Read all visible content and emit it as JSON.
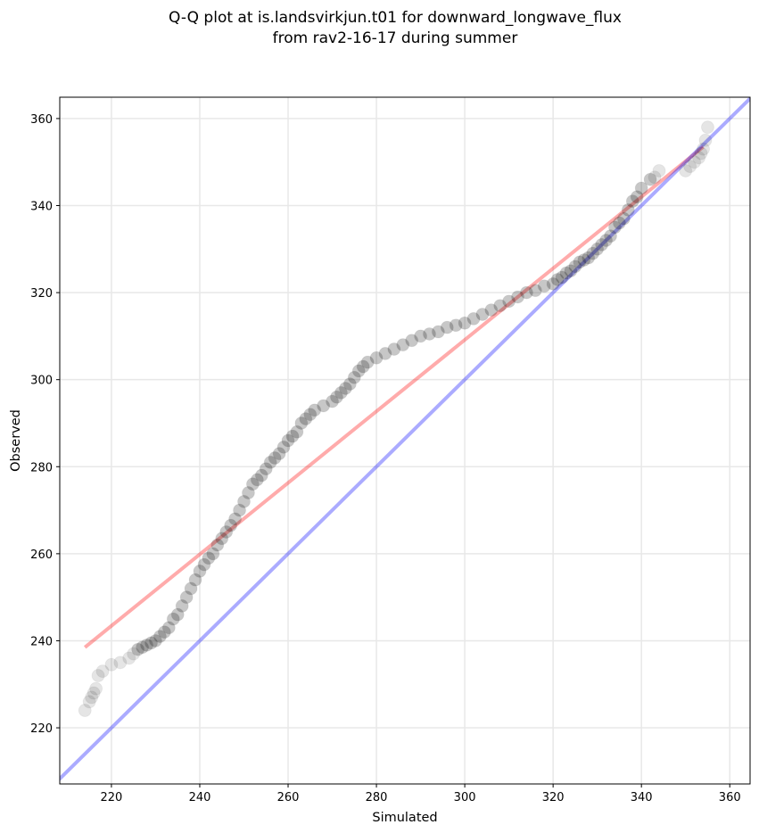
{
  "chart_data": {
    "type": "scatter",
    "title": [
      "Q-Q plot at is.landsvirkjun.t01 for downward_longwave_flux",
      "from rav2-16-17 during summer"
    ],
    "xlabel": "Simulated",
    "ylabel": "Observed",
    "xlim": [
      208.3,
      364.6
    ],
    "ylim": [
      207.1,
      364.9
    ],
    "xticks": [
      220,
      240,
      260,
      280,
      300,
      320,
      340,
      360
    ],
    "yticks": [
      220,
      240,
      260,
      280,
      300,
      320,
      340,
      360
    ],
    "grid": true,
    "quantiles": {
      "x": [
        214,
        215,
        215.5,
        216,
        216.5,
        217,
        218,
        220,
        222,
        224,
        225,
        226,
        227,
        228,
        229,
        230,
        231,
        232,
        233,
        234,
        235,
        236,
        237,
        238,
        239,
        240,
        241,
        242,
        243,
        244,
        245,
        246,
        247,
        248,
        249,
        250,
        251,
        252,
        253,
        254,
        255,
        256,
        257,
        258,
        259,
        260,
        261,
        262,
        263,
        264,
        265,
        266,
        268,
        270,
        271,
        272,
        273,
        274,
        275,
        276,
        277,
        278,
        280,
        282,
        284,
        286,
        288,
        290,
        292,
        294,
        296,
        298,
        300,
        302,
        304,
        306,
        308,
        310,
        312,
        314,
        316,
        318,
        320,
        321,
        322,
        323,
        324,
        325,
        326,
        327,
        328,
        329,
        330,
        331,
        332,
        333,
        334,
        335,
        336,
        337,
        338,
        339,
        340,
        342,
        343,
        344,
        350,
        351,
        352,
        353,
        353.5,
        354,
        354.5,
        355
      ],
      "y": [
        224,
        226,
        227,
        228,
        229,
        232,
        233,
        234.5,
        235,
        236,
        237,
        238,
        238.5,
        239,
        239.5,
        240,
        241,
        242,
        243,
        245,
        246,
        248,
        250,
        252,
        254,
        256,
        257.5,
        259,
        260,
        262,
        263.5,
        265,
        266.5,
        268,
        270,
        272,
        274,
        276,
        277,
        278,
        279.5,
        281,
        282,
        283,
        284.5,
        286,
        287,
        288,
        290,
        291,
        292,
        293,
        294,
        295,
        296,
        297,
        298,
        299,
        300.5,
        302,
        303,
        304,
        305,
        306,
        307,
        308,
        309,
        310,
        310.5,
        311,
        312,
        312.5,
        313,
        314,
        315,
        316,
        317,
        318,
        319,
        320,
        320.5,
        321.5,
        322,
        323,
        323.5,
        324.5,
        325,
        326,
        327,
        327.5,
        328,
        329,
        330,
        331,
        332,
        333,
        335,
        336,
        337,
        339,
        341,
        342,
        344,
        346,
        346.5,
        348,
        348,
        349,
        350,
        351,
        352,
        353,
        355,
        358
      ]
    },
    "series": [
      {
        "name": "fit",
        "color": "#ff0000",
        "x": [
          214,
          354
        ],
        "y": [
          238.5,
          353.5
        ],
        "alpha": 0.33
      },
      {
        "name": "identity",
        "color": "#0000ff",
        "x": [
          207,
          365
        ],
        "y": [
          207,
          365
        ],
        "alpha": 0.33
      }
    ]
  }
}
